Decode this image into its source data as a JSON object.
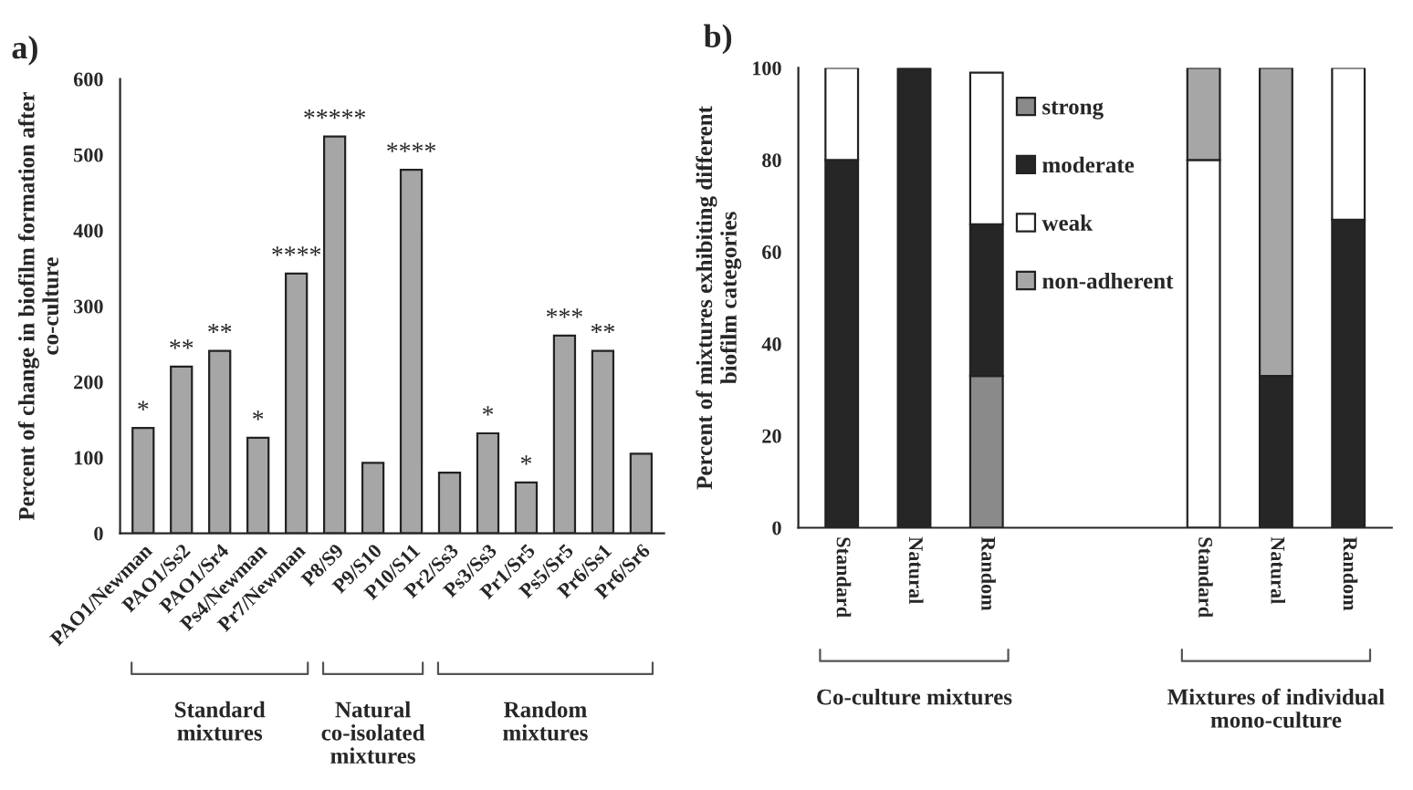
{
  "chart_data": [
    {
      "type": "bar",
      "title": "a)",
      "ylabel": "Percent of change in biofilm formation after co-culture",
      "categories": [
        "PAO1/Newman",
        "PAO1/Ss2",
        "PAO1/Sr4",
        "Ps4/Newman",
        "Pr7/Newman",
        "P8/S9",
        "P9/S10",
        "P10/S11",
        "Pr2/Ss3",
        "Ps3/Ss3",
        "Pr1/Sr5",
        "Ps5/Sr5",
        "Pr6/Ss1",
        "Pr6/Sr6"
      ],
      "values": [
        139,
        220,
        241,
        126,
        343,
        524,
        93,
        480,
        80,
        132,
        67,
        261,
        241,
        105
      ],
      "color": "#a6a6a6",
      "ylim": [
        0,
        600
      ],
      "yticks": [
        0,
        100,
        200,
        300,
        400,
        500,
        600
      ],
      "grid": false,
      "legend": false,
      "annotations": [
        {
          "text": "*",
          "x": "PAO1/Newman",
          "y": 139
        },
        {
          "text": "**",
          "x": "PAO1/Ss2",
          "y": 220
        },
        {
          "text": "**",
          "x": "PAO1/Sr4",
          "y": 241
        },
        {
          "text": "*",
          "x": "Ps4/Newman",
          "y": 126
        },
        {
          "text": "****",
          "x": "Pr7/Newman",
          "y": 343
        },
        {
          "text": "*****",
          "x": "P8/S9",
          "y": 524
        },
        {
          "text": "****",
          "x": "P10/S11",
          "y": 480
        },
        {
          "text": "*",
          "x": "Ps3/Ss3",
          "y": 132
        },
        {
          "text": "*",
          "x": "Pr1/Sr5",
          "y": 67
        },
        {
          "text": "***",
          "x": "Ps5/Sr5",
          "y": 261
        },
        {
          "text": "**",
          "x": "Pr6/Ss1",
          "y": 241
        },
        "Standard mixtures",
        "Natural co-isolated mixtures",
        "Random mixtures"
      ]
    },
    {
      "type": "bar",
      "title": "b)",
      "ylabel": "Percent of mixtures exhibiting different biofilm categories",
      "stacked": true,
      "categories": [
        "Standard",
        "Natural",
        "Random",
        null,
        null,
        "Standard",
        "Natural",
        "Random"
      ],
      "series": [
        {
          "name": "strong",
          "color": "#8a8a8a",
          "values": [
            0,
            0,
            33,
            null,
            null,
            0,
            0,
            0
          ]
        },
        {
          "name": "moderate",
          "color": "#262626",
          "values": [
            80,
            100,
            33,
            null,
            null,
            0,
            33,
            67
          ]
        },
        {
          "name": "weak",
          "color": "#ffffff",
          "values": [
            20,
            0,
            33,
            null,
            null,
            80,
            0,
            33
          ]
        },
        {
          "name": "non-adherent",
          "color": "#a6a6a6",
          "values": [
            0,
            0,
            0,
            null,
            null,
            20,
            67,
            0
          ]
        }
      ],
      "ylim": [
        0,
        100
      ],
      "yticks": [
        0,
        20,
        40,
        60,
        80,
        100
      ],
      "grid": false,
      "legend": "top",
      "annotations": [
        "Co-culture mixtures",
        "Mixtures of individual mono-culture"
      ]
    }
  ]
}
